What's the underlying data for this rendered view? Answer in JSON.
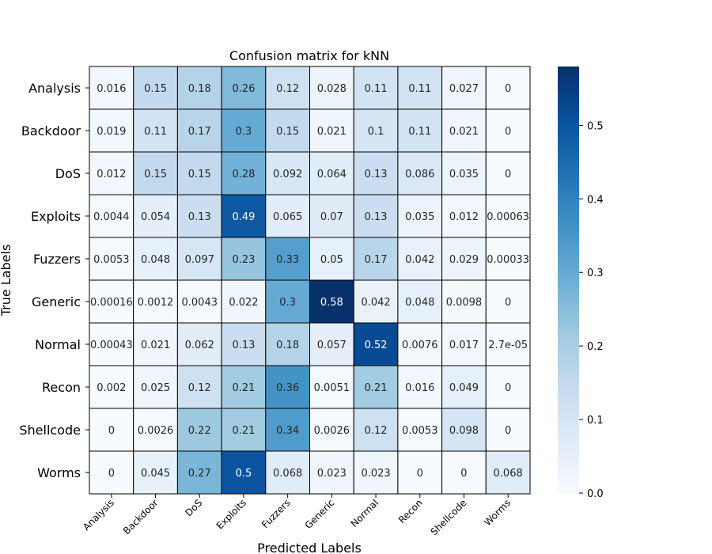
{
  "chart_data": {
    "type": "heatmap",
    "title": "Confusion matrix for kNN",
    "xlabel": "Predicted Labels",
    "ylabel": "True Labels",
    "x_categories": [
      "Analysis",
      "Backdoor",
      "DoS",
      "Exploits",
      "Fuzzers",
      "Generic",
      "Normal",
      "Recon",
      "Shellcode",
      "Worms"
    ],
    "y_categories": [
      "Analysis",
      "Backdoor",
      "DoS",
      "Exploits",
      "Fuzzers",
      "Generic",
      "Normal",
      "Recon",
      "Shellcode",
      "Worms"
    ],
    "values": [
      [
        0.016,
        0.15,
        0.18,
        0.26,
        0.12,
        0.028,
        0.11,
        0.11,
        0.027,
        0
      ],
      [
        0.019,
        0.11,
        0.17,
        0.3,
        0.15,
        0.021,
        0.1,
        0.11,
        0.021,
        0
      ],
      [
        0.012,
        0.15,
        0.15,
        0.28,
        0.092,
        0.064,
        0.13,
        0.086,
        0.035,
        0
      ],
      [
        0.0044,
        0.054,
        0.13,
        0.49,
        0.065,
        0.07,
        0.13,
        0.035,
        0.012,
        0.00063
      ],
      [
        0.0053,
        0.048,
        0.097,
        0.23,
        0.33,
        0.05,
        0.17,
        0.042,
        0.029,
        0.00033
      ],
      [
        0.00016,
        0.0012,
        0.0043,
        0.022,
        0.3,
        0.58,
        0.042,
        0.048,
        0.0098,
        0
      ],
      [
        0.00043,
        0.021,
        0.062,
        0.13,
        0.18,
        0.057,
        0.52,
        0.0076,
        0.017,
        2.7e-05
      ],
      [
        0.002,
        0.025,
        0.12,
        0.21,
        0.36,
        0.0051,
        0.21,
        0.016,
        0.049,
        0
      ],
      [
        0,
        0.0026,
        0.22,
        0.21,
        0.34,
        0.0026,
        0.12,
        0.0053,
        0.098,
        0
      ],
      [
        0,
        0.045,
        0.27,
        0.5,
        0.068,
        0.023,
        0.023,
        0,
        0,
        0.068
      ]
    ],
    "cell_labels": [
      [
        "0.016",
        "0.15",
        "0.18",
        "0.26",
        "0.12",
        "0.028",
        "0.11",
        "0.11",
        "0.027",
        "0"
      ],
      [
        "0.019",
        "0.11",
        "0.17",
        "0.3",
        "0.15",
        "0.021",
        "0.1",
        "0.11",
        "0.021",
        "0"
      ],
      [
        "0.012",
        "0.15",
        "0.15",
        "0.28",
        "0.092",
        "0.064",
        "0.13",
        "0.086",
        "0.035",
        "0"
      ],
      [
        "0.0044",
        "0.054",
        "0.13",
        "0.49",
        "0.065",
        "0.07",
        "0.13",
        "0.035",
        "0.012",
        "0.00063"
      ],
      [
        "0.0053",
        "0.048",
        "0.097",
        "0.23",
        "0.33",
        "0.05",
        "0.17",
        "0.042",
        "0.029",
        "0.00033"
      ],
      [
        "0.00016",
        "0.0012",
        "0.0043",
        "0.022",
        "0.3",
        "0.58",
        "0.042",
        "0.048",
        "0.0098",
        "0"
      ],
      [
        "0.00043",
        "0.021",
        "0.062",
        "0.13",
        "0.18",
        "0.057",
        "0.52",
        "0.0076",
        "0.017",
        "2.7e-05"
      ],
      [
        "0.002",
        "0.025",
        "0.12",
        "0.21",
        "0.36",
        "0.0051",
        "0.21",
        "0.016",
        "0.049",
        "0"
      ],
      [
        "0",
        "0.0026",
        "0.22",
        "0.21",
        "0.34",
        "0.0026",
        "0.12",
        "0.0053",
        "0.098",
        "0"
      ],
      [
        "0",
        "0.045",
        "0.27",
        "0.5",
        "0.068",
        "0.023",
        "0.023",
        "0",
        "0",
        "0.068"
      ]
    ],
    "colorbar": {
      "colormap": "Blues",
      "min": 0,
      "max": 0.58,
      "ticks": [
        "0.0",
        "0.1",
        "0.2",
        "0.3",
        "0.4",
        "0.5"
      ]
    },
    "colormap_stops": [
      "#f7fbff",
      "#deebf7",
      "#c6dbef",
      "#9ecae1",
      "#6baed6",
      "#4292c6",
      "#2171b5",
      "#08519c",
      "#08306b"
    ],
    "grid": true,
    "cell_borders": "#000000"
  }
}
